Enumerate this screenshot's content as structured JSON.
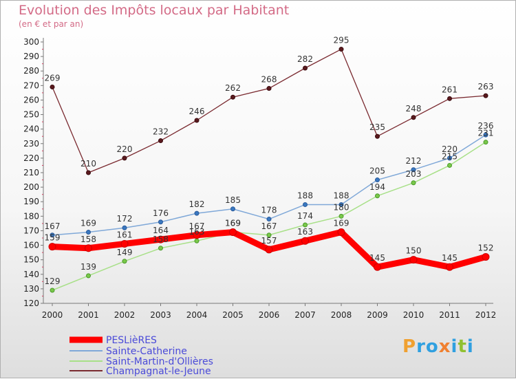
{
  "chart_data": {
    "type": "line",
    "title": "Evolution des Impôts locaux par Habitant",
    "subtitle": "(en € et par an)",
    "xlabel": "",
    "ylabel": "",
    "ylim": [
      120,
      300
    ],
    "yticks": [
      120,
      130,
      140,
      150,
      160,
      170,
      180,
      190,
      200,
      210,
      220,
      230,
      240,
      250,
      260,
      270,
      280,
      290,
      300
    ],
    "x": [
      "2000",
      "2001",
      "2002",
      "2003",
      "2004",
      "2005",
      "2006",
      "2007",
      "2008",
      "2009",
      "2010",
      "2011",
      "2012"
    ],
    "grid": false,
    "legend_position": "bottom-left",
    "series": [
      {
        "name": "PESLièRES",
        "color": "#ff0000",
        "values": [
          159,
          158,
          161,
          164,
          167,
          169,
          157,
          163,
          169,
          145,
          150,
          145,
          152
        ]
      },
      {
        "name": "Sainte-Catherine",
        "color": "#7fa8d8",
        "values": [
          167,
          169,
          172,
          176,
          182,
          185,
          178,
          188,
          188,
          205,
          212,
          220,
          236
        ]
      },
      {
        "name": "Saint-Martin-d'Ollières",
        "color": "#a8e088",
        "values": [
          129,
          139,
          149,
          158,
          163,
          169,
          167,
          174,
          180,
          194,
          203,
          215,
          231
        ]
      },
      {
        "name": "Champagnat-le-Jeune",
        "color": "#7a2a30",
        "values": [
          269,
          210,
          220,
          232,
          246,
          262,
          268,
          282,
          295,
          235,
          248,
          261,
          263
        ]
      }
    ]
  },
  "logo": {
    "letters": [
      {
        "ch": "P",
        "color": "#f0a030"
      },
      {
        "ch": "r",
        "color": "#30a0e0"
      },
      {
        "ch": "o",
        "color": "#30a0e0"
      },
      {
        "ch": "x",
        "color": "#f08030"
      },
      {
        "ch": "i",
        "color": "#30a0e0"
      },
      {
        "ch": "t",
        "color": "#90c030"
      },
      {
        "ch": "i",
        "color": "#30a0e0"
      }
    ]
  }
}
